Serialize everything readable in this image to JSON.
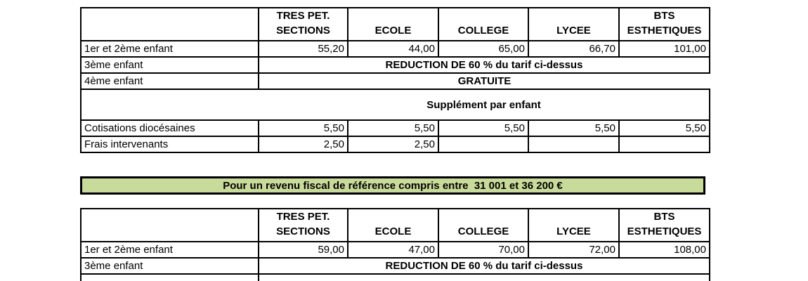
{
  "colors": {
    "banner_background": "#c9db9a",
    "border": "#000000",
    "page_background": "#ffffff"
  },
  "headers": {
    "tres_pet_line1": "TRES PET.",
    "tres_pet_line2": "SECTIONS",
    "ecole": "ECOLE",
    "college": "COLLEGE",
    "lycee": "LYCEE",
    "bts_line1": "BTS",
    "bts_line2": "ESTHETIQUES"
  },
  "upper_table": {
    "row_children_1_2": {
      "label": "1er et 2ème enfant",
      "values": [
        "55,20",
        "44,00",
        "65,00",
        "66,70",
        "101,00"
      ]
    },
    "row_child_3": {
      "label": "3ème enfant",
      "note": "REDUCTION DE 60 % du tarif ci-dessus"
    },
    "row_child_4": {
      "label": "4ème enfant",
      "note": "GRATUITE"
    },
    "supplement_title": "Supplément par enfant",
    "row_cotisations": {
      "label": "Cotisations diocésaines",
      "values": [
        "5,50",
        "5,50",
        "5,50",
        "5,50",
        "5,50"
      ]
    },
    "row_frais": {
      "label": "Frais intervenants",
      "values": [
        "2,50",
        "2,50",
        "",
        "",
        ""
      ]
    }
  },
  "banner": {
    "text": "Pour un revenu fiscal de référence compris entre  31 001 et 36 200 €"
  },
  "lower_table": {
    "row_children_1_2": {
      "label": "1er et 2ème enfant",
      "values": [
        "59,00",
        "47,00",
        "70,00",
        "72,00",
        "108,00"
      ]
    },
    "row_child_3": {
      "label": "3ème enfant",
      "note": "REDUCTION DE 60 % du tarif ci-dessus"
    }
  }
}
